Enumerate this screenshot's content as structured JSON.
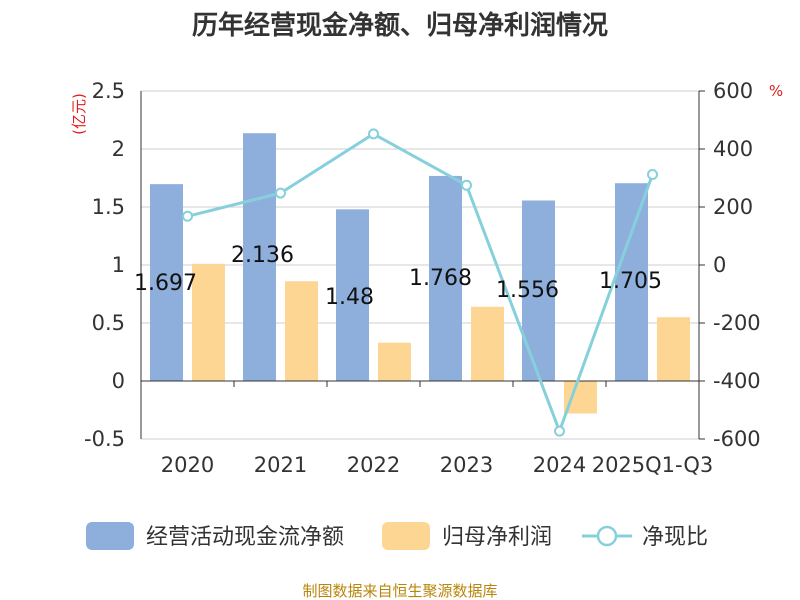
{
  "chart_data": {
    "type": "bar",
    "title": "历年经营现金净额、归母净利润情况",
    "categories": [
      "2020",
      "2021",
      "2022",
      "2023",
      "2024",
      "2025Q1-Q3"
    ],
    "left_axis": {
      "unit": "(亿元)",
      "ylim": [
        -0.5,
        2.5
      ],
      "ticks": [
        "-0.5",
        "0",
        "0.5",
        "1",
        "1.5",
        "2",
        "2.5"
      ]
    },
    "right_axis": {
      "unit": "%",
      "ylim": [
        -600,
        600
      ],
      "ticks": [
        "-600",
        "-400",
        "-200",
        "0",
        "200",
        "400",
        "600"
      ]
    },
    "series": [
      {
        "name": "经营活动现金流净额",
        "kind": "bar",
        "axis": "left",
        "color": "#8eaedb",
        "values": [
          1.697,
          2.136,
          1.48,
          1.768,
          1.556,
          1.705
        ],
        "labels": [
          "1.697",
          "2.136",
          "1.48",
          "1.768",
          "1.556",
          "1.705"
        ]
      },
      {
        "name": "归母净利润",
        "kind": "bar",
        "axis": "left",
        "color": "#fdd694",
        "values": [
          1.01,
          0.86,
          0.33,
          0.64,
          -0.28,
          0.55
        ]
      },
      {
        "name": "净现比",
        "kind": "line",
        "axis": "right",
        "color": "#86d0dc",
        "values": [
          168,
          248,
          452,
          275,
          -573,
          312
        ]
      }
    ],
    "grid": true,
    "legend": "bottom"
  },
  "footer": {
    "source": "制图数据来自恒生聚源数据库"
  }
}
